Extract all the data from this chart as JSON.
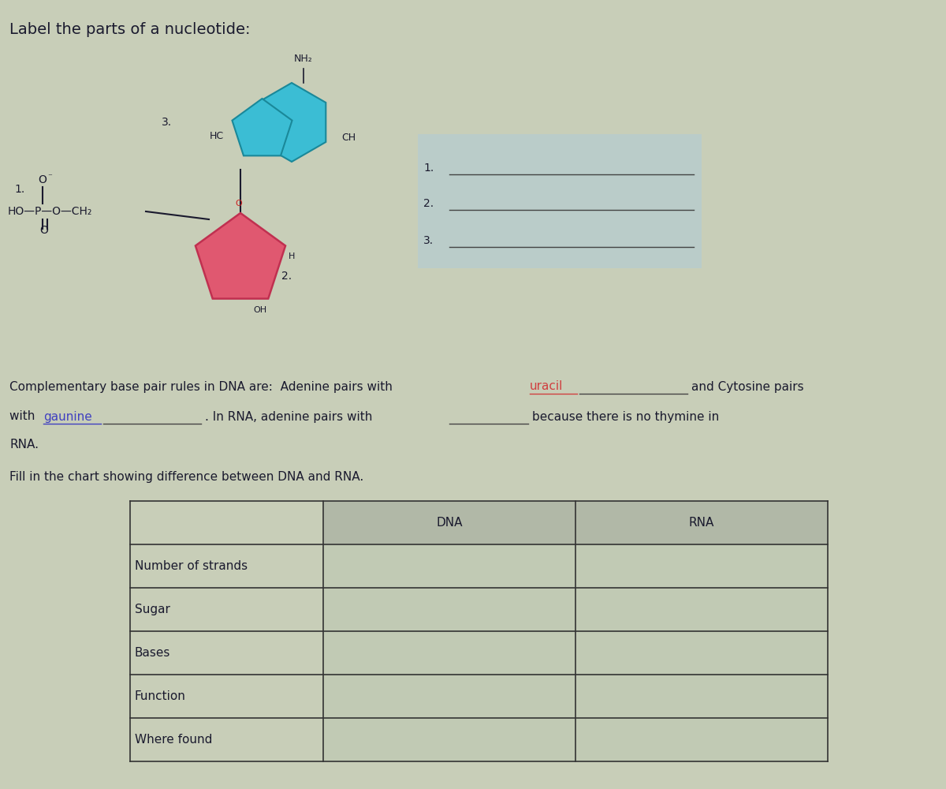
{
  "title": "Label the parts of a nucleotide:",
  "page_bg": "#c8ceb8",
  "base_color": "#3bbdd4",
  "sugar_color": "#e05870",
  "sugar_edge": "#c03050",
  "text_color": "#1a1a2e",
  "uracil_color": "#d04040",
  "guanine_color": "#4040c0",
  "answer_line_color": "#444444",
  "table_border_color": "#333333",
  "label_bg_color": "#b0ccd8",
  "font_size_title": 14,
  "font_size_body": 11,
  "font_size_table": 11,
  "font_size_diagram": 10,
  "table_rows": [
    "Number of strands",
    "Sugar",
    "Bases",
    "Function",
    "Where found"
  ]
}
